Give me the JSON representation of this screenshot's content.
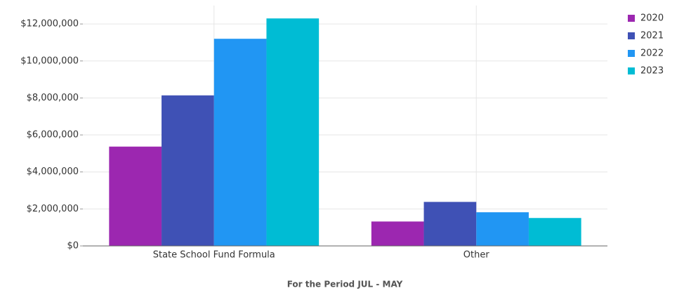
{
  "chart_data": {
    "type": "bar",
    "x_label": "For the Period JUL - MAY",
    "categories": [
      "State School Fund Formula",
      "Other"
    ],
    "series": [
      {
        "name": "2020",
        "color": "#9c27b0",
        "values": [
          5370000,
          1320000
        ]
      },
      {
        "name": "2021",
        "color": "#3f51b5",
        "values": [
          8140000,
          2380000
        ]
      },
      {
        "name": "2022",
        "color": "#2196f3",
        "values": [
          11200000,
          1820000
        ]
      },
      {
        "name": "2023",
        "color": "#00bcd4",
        "values": [
          12300000,
          1510000
        ]
      }
    ],
    "ylim": [
      0,
      13000000
    ],
    "yticks": [
      {
        "value": 0,
        "label": "$0"
      },
      {
        "value": 2000000,
        "label": "$2,000,000"
      },
      {
        "value": 4000000,
        "label": "$4,000,000"
      },
      {
        "value": 6000000,
        "label": "$6,000,000"
      },
      {
        "value": 8000000,
        "label": "$8,000,000"
      },
      {
        "value": 10000000,
        "label": "$10,000,000"
      },
      {
        "value": 12000000,
        "label": "$12,000,000"
      }
    ],
    "grid": true,
    "legend": "top-right"
  }
}
